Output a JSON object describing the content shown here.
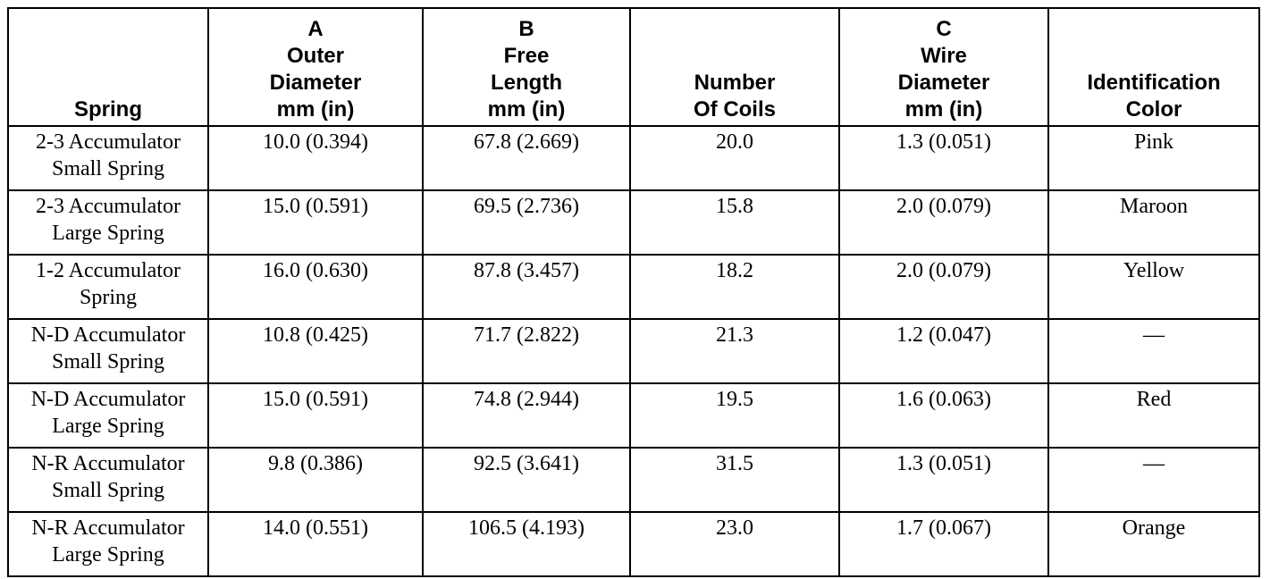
{
  "headers": [
    {
      "lines": [
        "Spring"
      ]
    },
    {
      "lines": [
        "A",
        "Outer",
        "Diameter",
        "mm (in)"
      ]
    },
    {
      "lines": [
        "B",
        "Free",
        "Length",
        "mm (in)"
      ]
    },
    {
      "lines": [
        "Number",
        "Of Coils"
      ]
    },
    {
      "lines": [
        "C",
        "Wire",
        "Diameter",
        "mm (in)"
      ]
    },
    {
      "lines": [
        "Identification",
        "Color"
      ]
    }
  ],
  "rows": [
    {
      "spring": [
        "2-3 Accumulator",
        "Small Spring"
      ],
      "outer_diameter": "10.0 (0.394)",
      "free_length": "67.8 (2.669)",
      "coils": "20.0",
      "wire_diameter": "1.3 (0.051)",
      "color": "Pink"
    },
    {
      "spring": [
        "2-3 Accumulator",
        "Large Spring"
      ],
      "outer_diameter": "15.0 (0.591)",
      "free_length": "69.5 (2.736)",
      "coils": "15.8",
      "wire_diameter": "2.0 (0.079)",
      "color": "Maroon"
    },
    {
      "spring": [
        "1-2 Accumulator",
        "Spring"
      ],
      "outer_diameter": "16.0 (0.630)",
      "free_length": "87.8 (3.457)",
      "coils": "18.2",
      "wire_diameter": "2.0 (0.079)",
      "color": "Yellow"
    },
    {
      "spring": [
        "N-D Accumulator",
        "Small Spring"
      ],
      "outer_diameter": "10.8 (0.425)",
      "free_length": "71.7 (2.822)",
      "coils": "21.3",
      "wire_diameter": "1.2 (0.047)",
      "color": "—"
    },
    {
      "spring": [
        "N-D Accumulator",
        "Large Spring"
      ],
      "outer_diameter": "15.0 (0.591)",
      "free_length": "74.8 (2.944)",
      "coils": "19.5",
      "wire_diameter": "1.6 (0.063)",
      "color": "Red"
    },
    {
      "spring": [
        "N-R Accumulator",
        "Small Spring"
      ],
      "outer_diameter": "9.8 (0.386)",
      "free_length": "92.5 (3.641)",
      "coils": "31.5",
      "wire_diameter": "1.3 (0.051)",
      "color": "—"
    },
    {
      "spring": [
        "N-R Accumulator",
        "Large Spring"
      ],
      "outer_diameter": "14.0 (0.551)",
      "free_length": "106.5 (4.193)",
      "coils": "23.0",
      "wire_diameter": "1.7 (0.067)",
      "color": "Orange"
    }
  ]
}
